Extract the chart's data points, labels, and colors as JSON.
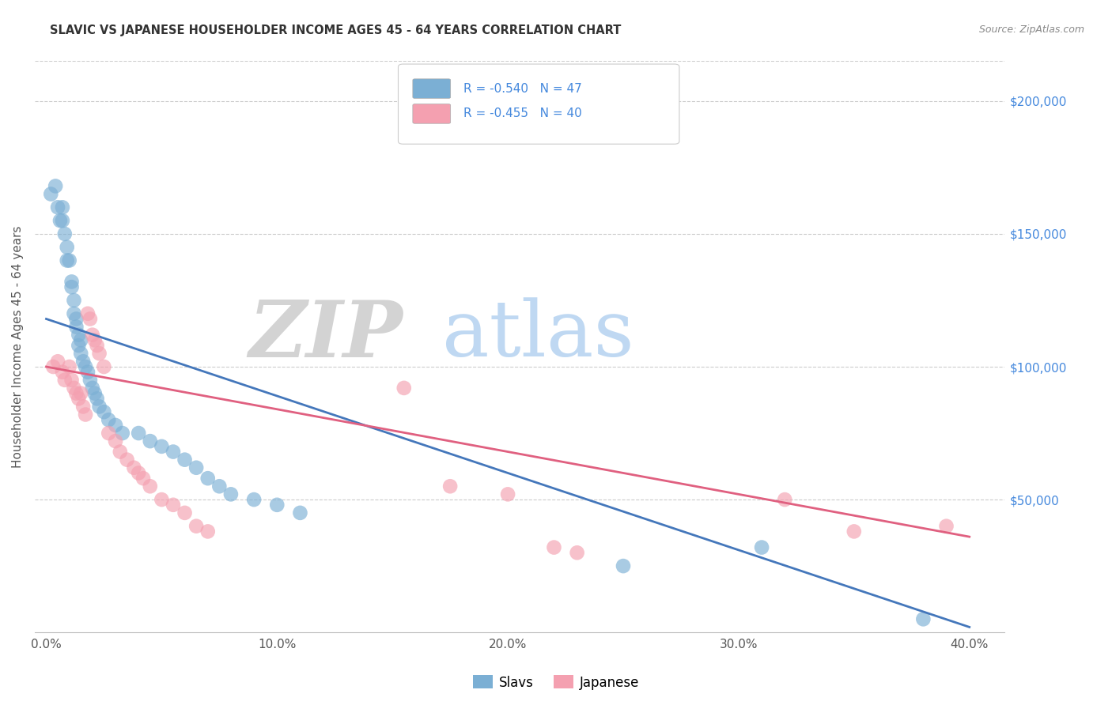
{
  "title": "SLAVIC VS JAPANESE HOUSEHOLDER INCOME AGES 45 - 64 YEARS CORRELATION CHART",
  "source": "Source: ZipAtlas.com",
  "xlabel_ticks": [
    "0.0%",
    "10.0%",
    "20.0%",
    "30.0%",
    "40.0%"
  ],
  "xlabel_tick_vals": [
    0.0,
    0.1,
    0.2,
    0.3,
    0.4
  ],
  "ylabel": "Householder Income Ages 45 - 64 years",
  "ylabel_ticks": [
    "$50,000",
    "$100,000",
    "$150,000",
    "$200,000"
  ],
  "ylabel_tick_vals": [
    50000,
    100000,
    150000,
    200000
  ],
  "ylim": [
    0,
    215000
  ],
  "xlim": [
    -0.005,
    0.415
  ],
  "slavs_color": "#7BAFD4",
  "japanese_color": "#F4A0B0",
  "slavs_line_color": "#4477BB",
  "japanese_line_color": "#E06080",
  "legend_slavs_label": "Slavs",
  "legend_japanese_label": "Japanese",
  "R_slavs": "-0.540",
  "N_slavs": 47,
  "R_japanese": "-0.455",
  "N_japanese": 40,
  "watermark_zip": "ZIP",
  "watermark_atlas": "atlas",
  "slavs_x": [
    0.002,
    0.004,
    0.005,
    0.006,
    0.007,
    0.007,
    0.008,
    0.009,
    0.009,
    0.01,
    0.011,
    0.011,
    0.012,
    0.012,
    0.013,
    0.013,
    0.014,
    0.014,
    0.015,
    0.015,
    0.016,
    0.017,
    0.018,
    0.019,
    0.02,
    0.021,
    0.022,
    0.023,
    0.025,
    0.027,
    0.03,
    0.033,
    0.04,
    0.045,
    0.05,
    0.055,
    0.06,
    0.065,
    0.07,
    0.075,
    0.08,
    0.09,
    0.1,
    0.11,
    0.25,
    0.31,
    0.38
  ],
  "slavs_y": [
    165000,
    168000,
    160000,
    155000,
    155000,
    160000,
    150000,
    145000,
    140000,
    140000,
    130000,
    132000,
    125000,
    120000,
    118000,
    115000,
    112000,
    108000,
    110000,
    105000,
    102000,
    100000,
    98000,
    95000,
    92000,
    90000,
    88000,
    85000,
    83000,
    80000,
    78000,
    75000,
    75000,
    72000,
    70000,
    68000,
    65000,
    62000,
    58000,
    55000,
    52000,
    50000,
    48000,
    45000,
    25000,
    32000,
    5000
  ],
  "japanese_x": [
    0.003,
    0.005,
    0.007,
    0.008,
    0.01,
    0.011,
    0.012,
    0.013,
    0.014,
    0.015,
    0.016,
    0.017,
    0.018,
    0.019,
    0.02,
    0.021,
    0.022,
    0.023,
    0.025,
    0.027,
    0.03,
    0.032,
    0.035,
    0.038,
    0.04,
    0.042,
    0.045,
    0.05,
    0.055,
    0.06,
    0.065,
    0.07,
    0.155,
    0.175,
    0.2,
    0.22,
    0.23,
    0.32,
    0.35,
    0.39
  ],
  "japanese_y": [
    100000,
    102000,
    98000,
    95000,
    100000,
    95000,
    92000,
    90000,
    88000,
    90000,
    85000,
    82000,
    120000,
    118000,
    112000,
    110000,
    108000,
    105000,
    100000,
    75000,
    72000,
    68000,
    65000,
    62000,
    60000,
    58000,
    55000,
    50000,
    48000,
    45000,
    40000,
    38000,
    92000,
    55000,
    52000,
    32000,
    30000,
    50000,
    38000,
    40000
  ],
  "slavs_line_x0": 0.0,
  "slavs_line_y0": 118000,
  "slavs_line_x1": 0.4,
  "slavs_line_y1": 2000,
  "japanese_line_x0": 0.0,
  "japanese_line_y0": 100000,
  "japanese_line_x1": 0.4,
  "japanese_line_y1": 36000
}
